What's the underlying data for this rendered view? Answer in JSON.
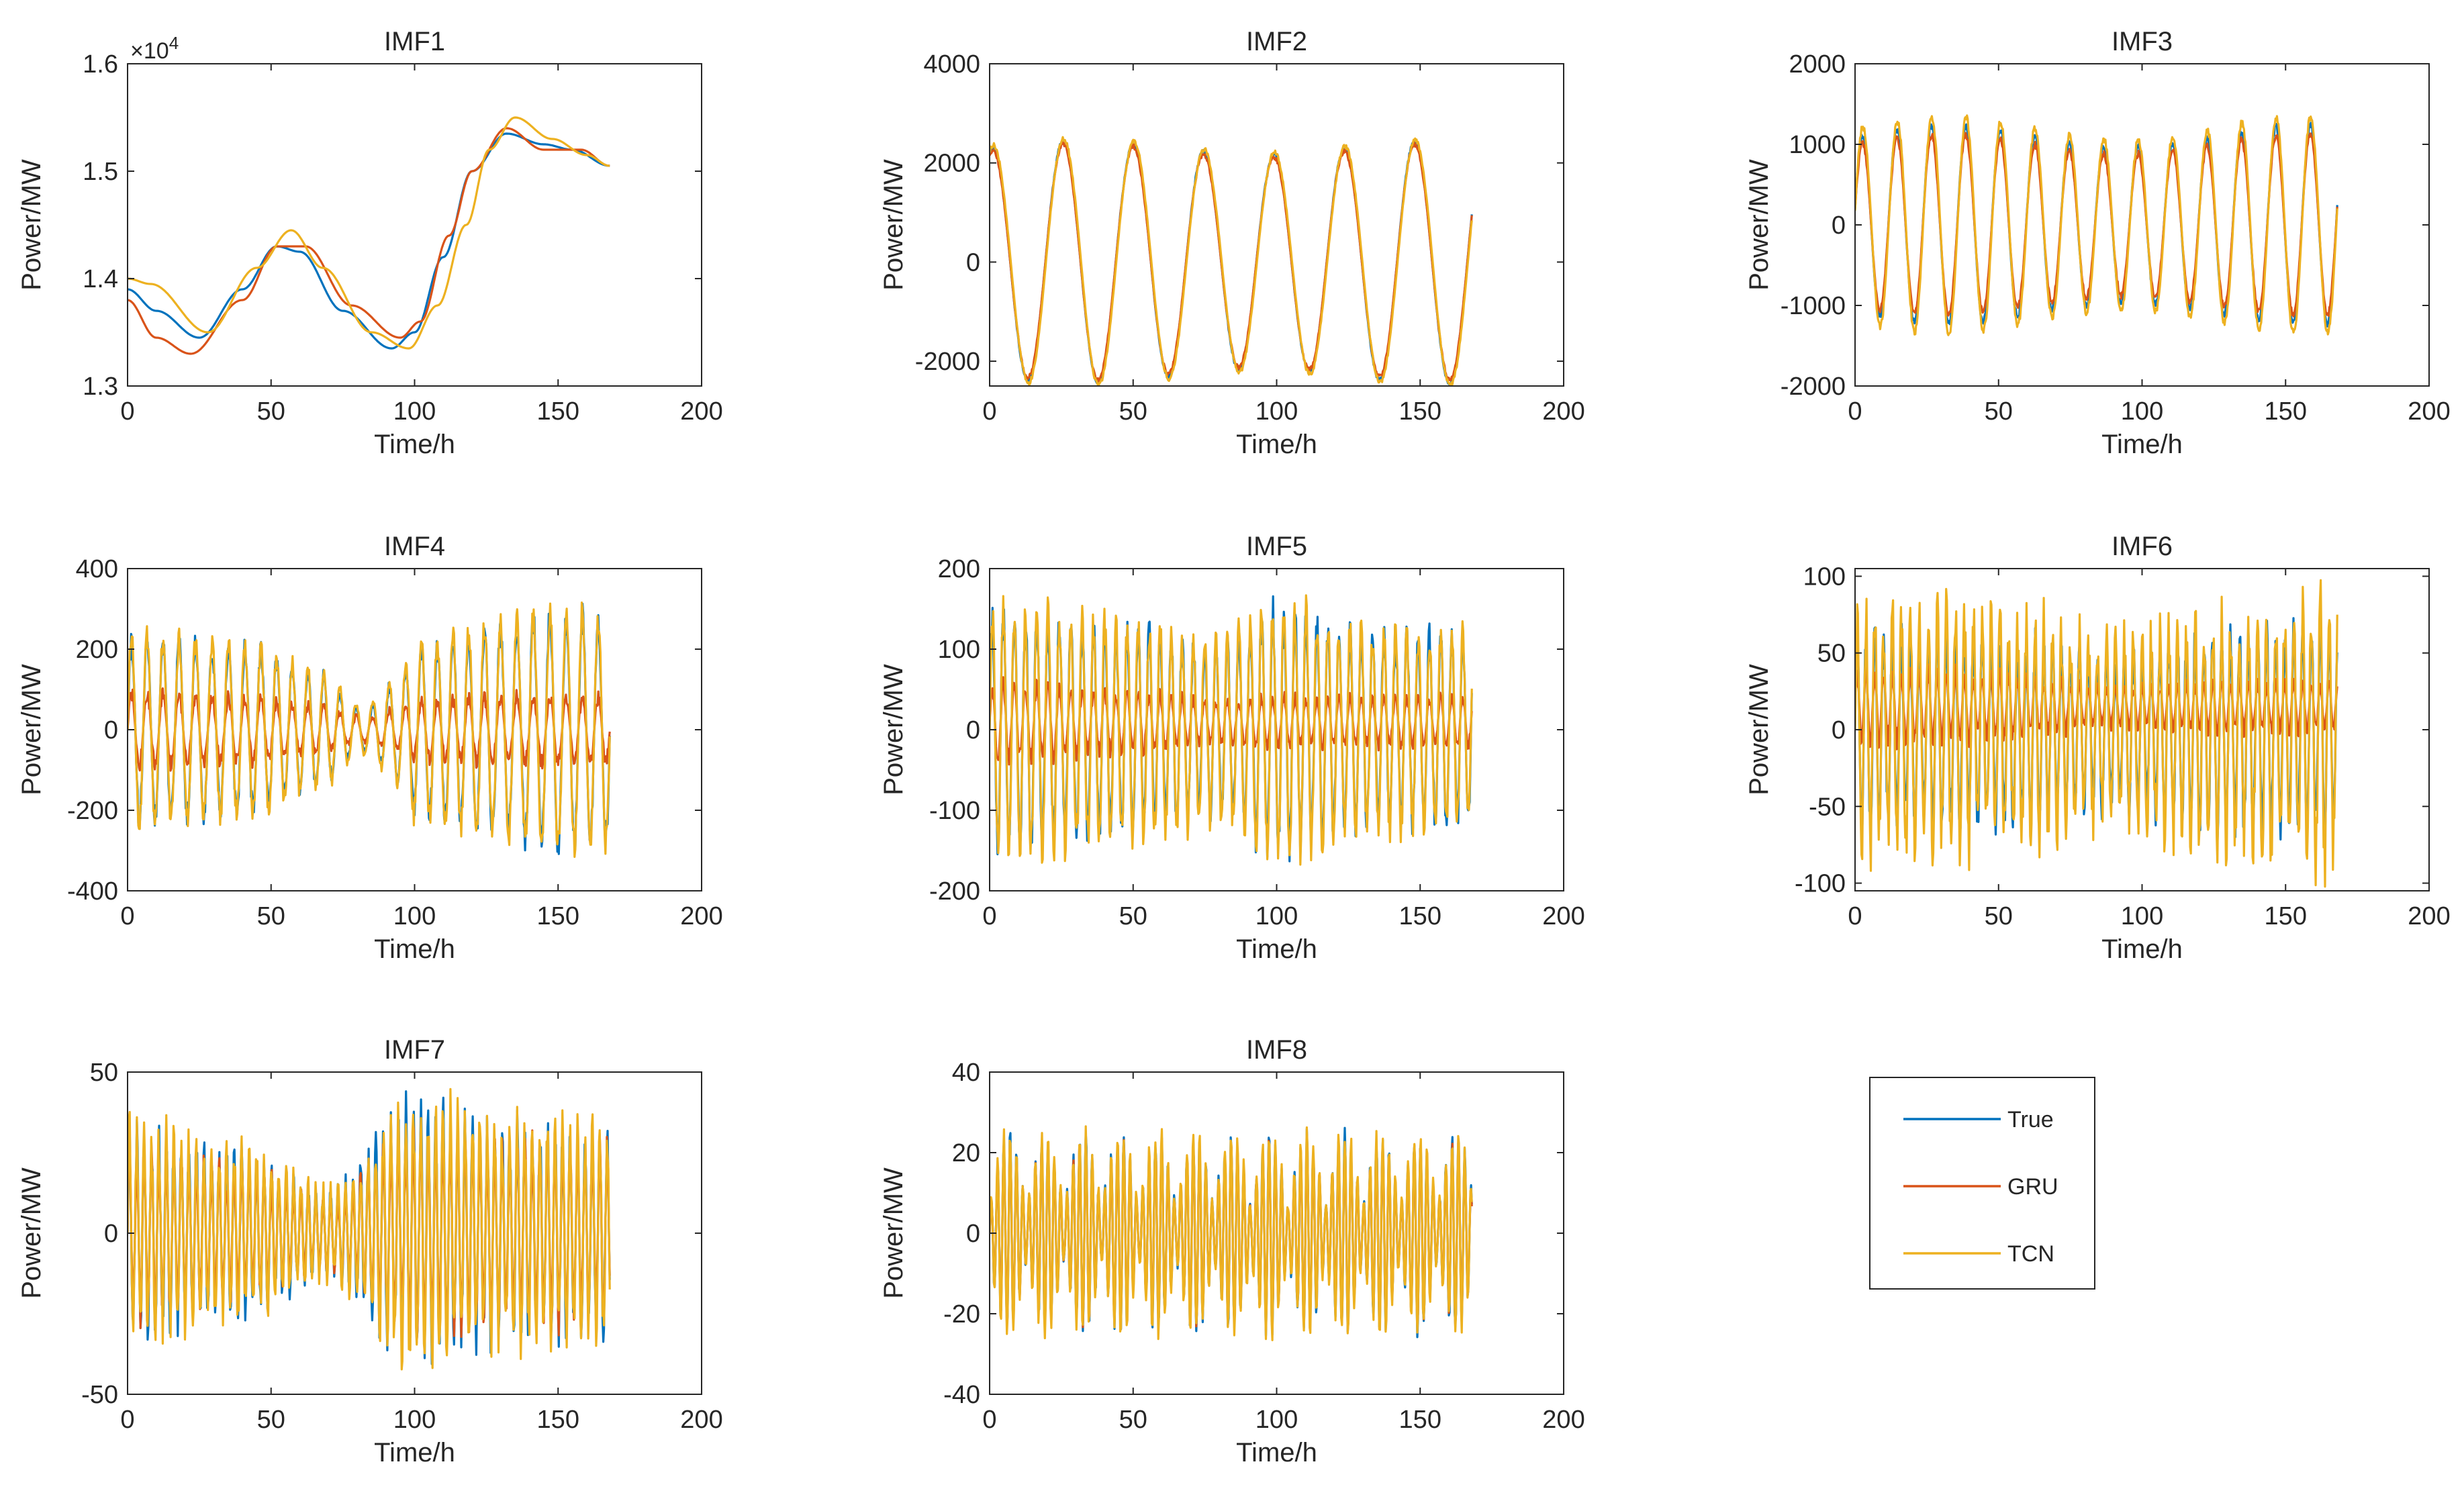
{
  "legend": {
    "placement": "bottom-right",
    "entries": [
      {
        "name": "True",
        "color": "#0072BD"
      },
      {
        "name": "GRU",
        "color": "#D95319"
      },
      {
        "name": "TCN",
        "color": "#EDB120"
      }
    ]
  },
  "chart_data": [
    {
      "type": "line",
      "title": "IMF1",
      "xlabel": "Time/h",
      "ylabel": "Power/MW",
      "xlim": [
        0,
        200
      ],
      "ylim": [
        1.3,
        1.6
      ],
      "exponent_label": "×10",
      "exponent": "4",
      "xticks": [
        0,
        50,
        100,
        150,
        200
      ],
      "xtick_labels": [
        "0",
        "50",
        "100",
        "150",
        "200"
      ],
      "yticks": [
        1.3,
        1.4,
        1.5,
        1.6
      ],
      "ytick_labels": [
        "1.3",
        "1.4",
        "1.5",
        "1.6"
      ],
      "series": [
        {
          "name": "True",
          "model": "keypoints",
          "points": [
            [
              0,
              1.39
            ],
            [
              10,
              1.37
            ],
            [
              25,
              1.345
            ],
            [
              40,
              1.39
            ],
            [
              52,
              1.43
            ],
            [
              60,
              1.425
            ],
            [
              75,
              1.37
            ],
            [
              92,
              1.335
            ],
            [
              100,
              1.35
            ],
            [
              110,
              1.42
            ],
            [
              120,
              1.5
            ],
            [
              132,
              1.535
            ],
            [
              145,
              1.525
            ],
            [
              155,
              1.52
            ],
            [
              168,
              1.505
            ]
          ]
        },
        {
          "name": "GRU",
          "model": "keypoints",
          "points": [
            [
              0,
              1.38
            ],
            [
              10,
              1.345
            ],
            [
              22,
              1.33
            ],
            [
              40,
              1.38
            ],
            [
              52,
              1.43
            ],
            [
              62,
              1.43
            ],
            [
              78,
              1.375
            ],
            [
              95,
              1.345
            ],
            [
              102,
              1.36
            ],
            [
              112,
              1.44
            ],
            [
              120,
              1.5
            ],
            [
              132,
              1.54
            ],
            [
              145,
              1.52
            ],
            [
              158,
              1.52
            ],
            [
              168,
              1.505
            ]
          ]
        },
        {
          "name": "TCN",
          "model": "keypoints",
          "points": [
            [
              0,
              1.4
            ],
            [
              8,
              1.395
            ],
            [
              28,
              1.35
            ],
            [
              45,
              1.41
            ],
            [
              57,
              1.445
            ],
            [
              68,
              1.41
            ],
            [
              85,
              1.35
            ],
            [
              98,
              1.335
            ],
            [
              108,
              1.375
            ],
            [
              118,
              1.45
            ],
            [
              126,
              1.52
            ],
            [
              135,
              1.55
            ],
            [
              148,
              1.53
            ],
            [
              160,
              1.515
            ],
            [
              168,
              1.505
            ]
          ]
        }
      ]
    },
    {
      "type": "line",
      "title": "IMF2",
      "xlabel": "Time/h",
      "ylabel": "Power/MW",
      "xlim": [
        0,
        200
      ],
      "ylim": [
        -2500,
        4000
      ],
      "xticks": [
        0,
        50,
        100,
        150,
        200
      ],
      "xtick_labels": [
        "0",
        "50",
        "100",
        "150",
        "200"
      ],
      "yticks": [
        -2000,
        0,
        2000,
        4000
      ],
      "ytick_labels": [
        "-2000",
        "0",
        "2000",
        "4000"
      ],
      "series": [
        {
          "name": "True",
          "model": "wave",
          "amp": 2300,
          "env": 0.06,
          "period": 24.5,
          "phase": 1.3,
          "offset": 0,
          "noise": 0.02,
          "seed": 11
        },
        {
          "name": "GRU",
          "model": "wave",
          "amp": 2250,
          "env": 0.06,
          "period": 24.5,
          "phase": 1.3,
          "offset": 0,
          "noise": 0.02,
          "seed": 12
        },
        {
          "name": "TCN",
          "model": "wave",
          "amp": 2350,
          "env": 0.06,
          "period": 24.5,
          "phase": 1.25,
          "offset": 0,
          "noise": 0.02,
          "seed": 13
        }
      ]
    },
    {
      "type": "line",
      "title": "IMF3",
      "xlabel": "Time/h",
      "ylabel": "Power/MW",
      "xlim": [
        0,
        200
      ],
      "ylim": [
        -2000,
        2000
      ],
      "xticks": [
        0,
        50,
        100,
        150,
        200
      ],
      "xtick_labels": [
        "0",
        "50",
        "100",
        "150",
        "200"
      ],
      "yticks": [
        -2000,
        -1000,
        0,
        1000,
        2000
      ],
      "ytick_labels": [
        "-2000",
        "-1000",
        "0",
        "1000",
        "2000"
      ],
      "series": [
        {
          "name": "True",
          "model": "wave",
          "amp": 1100,
          "env": 0.12,
          "period": 12,
          "phase": 0.2,
          "offset": 0,
          "noise": 0.04,
          "seed": 21
        },
        {
          "name": "GRU",
          "model": "wave",
          "amp": 1000,
          "env": 0.12,
          "period": 12,
          "phase": 0.2,
          "offset": 0,
          "noise": 0.04,
          "seed": 22
        },
        {
          "name": "TCN",
          "model": "wave",
          "amp": 1200,
          "env": 0.12,
          "period": 12,
          "phase": 0.15,
          "offset": 0,
          "noise": 0.04,
          "seed": 23
        }
      ]
    },
    {
      "type": "line",
      "title": "IMF4",
      "xlabel": "Time/h",
      "ylabel": "Power/MW",
      "xlim": [
        0,
        200
      ],
      "ylim": [
        -400,
        400
      ],
      "xticks": [
        0,
        50,
        100,
        150,
        200
      ],
      "xtick_labels": [
        "0",
        "50",
        "100",
        "150",
        "200"
      ],
      "yticks": [
        -400,
        -200,
        0,
        200,
        400
      ],
      "ytick_labels": [
        "-400",
        "-200",
        "0",
        "200",
        "400"
      ],
      "series": [
        {
          "name": "True",
          "model": "envwave",
          "period": 5.6,
          "offset": 0,
          "noise": 0.15,
          "seed": 31,
          "envelope": [
            [
              0,
              220
            ],
            [
              40,
              200
            ],
            [
              65,
              140
            ],
            [
              82,
              50
            ],
            [
              95,
              120
            ],
            [
              100,
              200
            ],
            [
              130,
              250
            ],
            [
              150,
              280
            ],
            [
              168,
              270
            ]
          ]
        },
        {
          "name": "GRU",
          "model": "envwave",
          "period": 5.6,
          "offset": 0,
          "noise": 0.25,
          "seed": 32,
          "envelope": [
            [
              0,
              90
            ],
            [
              40,
              80
            ],
            [
              65,
              60
            ],
            [
              82,
              30
            ],
            [
              95,
              50
            ],
            [
              100,
              70
            ],
            [
              130,
              80
            ],
            [
              168,
              80
            ]
          ]
        },
        {
          "name": "TCN",
          "model": "envwave",
          "period": 5.6,
          "offset": 0,
          "noise": 0.15,
          "seed": 33,
          "envelope": [
            [
              0,
              230
            ],
            [
              40,
              210
            ],
            [
              65,
              150
            ],
            [
              82,
              60
            ],
            [
              95,
              130
            ],
            [
              100,
              210
            ],
            [
              130,
              260
            ],
            [
              150,
              290
            ],
            [
              168,
              280
            ]
          ]
        }
      ]
    },
    {
      "type": "line",
      "title": "IMF5",
      "xlabel": "Time/h",
      "ylabel": "Power/MW",
      "xlim": [
        0,
        200
      ],
      "ylim": [
        -200,
        200
      ],
      "xticks": [
        0,
        50,
        100,
        150,
        200
      ],
      "xtick_labels": [
        "0",
        "50",
        "100",
        "150",
        "200"
      ],
      "yticks": [
        -200,
        -100,
        0,
        100,
        200
      ],
      "ytick_labels": [
        "-200",
        "-100",
        "0",
        "100",
        "200"
      ],
      "series": [
        {
          "name": "True",
          "model": "envwave",
          "period": 3.9,
          "offset": 0,
          "noise": 0.2,
          "seed": 41,
          "envelope": [
            [
              0,
              140
            ],
            [
              50,
              120
            ],
            [
              80,
              100
            ],
            [
              100,
              140
            ],
            [
              130,
              115
            ],
            [
              168,
              110
            ]
          ]
        },
        {
          "name": "GRU",
          "model": "envwave",
          "period": 3.9,
          "offset": 10,
          "noise": 0.3,
          "seed": 42,
          "envelope": [
            [
              0,
              45
            ],
            [
              50,
              35
            ],
            [
              80,
              25
            ],
            [
              100,
              30
            ],
            [
              130,
              28
            ],
            [
              168,
              30
            ]
          ]
        },
        {
          "name": "TCN",
          "model": "envwave",
          "period": 3.9,
          "offset": 0,
          "noise": 0.2,
          "seed": 43,
          "envelope": [
            [
              0,
              150
            ],
            [
              50,
              130
            ],
            [
              80,
              110
            ],
            [
              100,
              150
            ],
            [
              130,
              120
            ],
            [
              168,
              115
            ]
          ]
        }
      ]
    },
    {
      "type": "line",
      "title": "IMF6",
      "xlabel": "Time/h",
      "ylabel": "Power/MW",
      "xlim": [
        0,
        200
      ],
      "ylim": [
        -105,
        105
      ],
      "xticks": [
        0,
        50,
        100,
        150,
        200
      ],
      "xtick_labels": [
        "0",
        "50",
        "100",
        "150",
        "200"
      ],
      "yticks": [
        -100,
        -50,
        0,
        50,
        100
      ],
      "ytick_labels": [
        "-100",
        "-50",
        "0",
        "50",
        "100"
      ],
      "series": [
        {
          "name": "True",
          "model": "envwave",
          "period": 3.1,
          "offset": 0,
          "noise": 0.3,
          "seed": 51,
          "envelope": [
            [
              0,
              60
            ],
            [
              50,
              55
            ],
            [
              90,
              45
            ],
            [
              130,
              60
            ],
            [
              168,
              60
            ]
          ]
        },
        {
          "name": "GRU",
          "model": "envwave",
          "period": 3.1,
          "offset": 15,
          "noise": 0.35,
          "seed": 52,
          "envelope": [
            [
              0,
              22
            ],
            [
              50,
              20
            ],
            [
              90,
              12
            ],
            [
              130,
              15
            ],
            [
              168,
              15
            ]
          ]
        },
        {
          "name": "TCN",
          "model": "envwave",
          "period": 3.1,
          "offset": 0,
          "noise": 0.35,
          "seed": 53,
          "envelope": [
            [
              0,
              75
            ],
            [
              50,
              70
            ],
            [
              90,
              55
            ],
            [
              130,
              70
            ],
            [
              168,
              80
            ]
          ]
        }
      ]
    },
    {
      "type": "line",
      "title": "IMF7",
      "xlabel": "Time/h",
      "ylabel": "Power/MW",
      "xlim": [
        0,
        200
      ],
      "ylim": [
        -50,
        50
      ],
      "xticks": [
        0,
        50,
        100,
        150,
        200
      ],
      "xtick_labels": [
        "0",
        "50",
        "100",
        "150",
        "200"
      ],
      "yticks": [
        -50,
        0,
        50
      ],
      "ytick_labels": [
        "-50",
        "0",
        "50"
      ],
      "series": [
        {
          "name": "True",
          "model": "envwave",
          "period": 2.6,
          "offset": 0,
          "noise": 0.3,
          "seed": 61,
          "envelope": [
            [
              0,
              28
            ],
            [
              40,
              22
            ],
            [
              70,
              12
            ],
            [
              100,
              35
            ],
            [
              130,
              30
            ],
            [
              168,
              28
            ]
          ]
        },
        {
          "name": "GRU",
          "model": "envwave",
          "period": 2.6,
          "offset": 0,
          "noise": 0.3,
          "seed": 62,
          "envelope": [
            [
              0,
              24
            ],
            [
              40,
              18
            ],
            [
              70,
              10
            ],
            [
              100,
              28
            ],
            [
              130,
              25
            ],
            [
              168,
              24
            ]
          ]
        },
        {
          "name": "TCN",
          "model": "envwave",
          "period": 2.6,
          "offset": 0,
          "noise": 0.3,
          "seed": 63,
          "envelope": [
            [
              0,
              30
            ],
            [
              40,
              24
            ],
            [
              70,
              13
            ],
            [
              100,
              38
            ],
            [
              130,
              32
            ],
            [
              168,
              30
            ]
          ]
        }
      ]
    },
    {
      "type": "line",
      "title": "IMF8",
      "xlabel": "Time/h",
      "ylabel": "Power/MW",
      "xlim": [
        0,
        200
      ],
      "ylim": [
        -40,
        40
      ],
      "xticks": [
        0,
        50,
        100,
        150,
        200
      ],
      "xtick_labels": [
        "0",
        "50",
        "100",
        "150",
        "200"
      ],
      "yticks": [
        -40,
        -20,
        0,
        20,
        40
      ],
      "ytick_labels": [
        "-40",
        "-20",
        "0",
        "20",
        "40"
      ],
      "series": [
        {
          "name": "True",
          "model": "beat",
          "amp": 24,
          "period": 2.2,
          "beat": 13,
          "offset": 0,
          "noise": 0.1,
          "seed": 71
        },
        {
          "name": "GRU",
          "model": "beat",
          "amp": 22,
          "period": 2.2,
          "beat": 13,
          "offset": 0,
          "noise": 0.1,
          "seed": 72
        },
        {
          "name": "TCN",
          "model": "beat",
          "amp": 25,
          "period": 2.2,
          "beat": 13,
          "offset": 0,
          "noise": 0.1,
          "seed": 73
        }
      ]
    }
  ]
}
